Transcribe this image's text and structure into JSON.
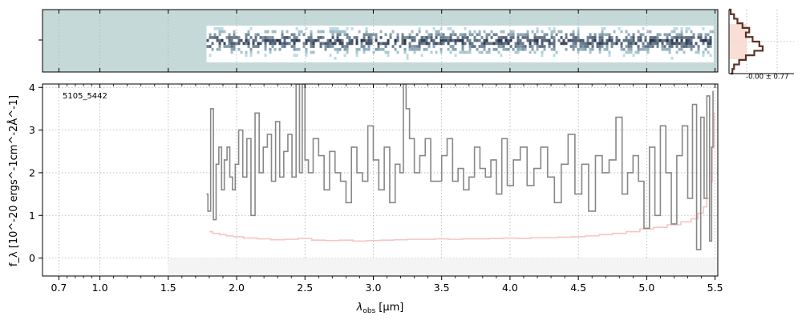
{
  "chart_data": {
    "type": "line",
    "object_label": "5105_5442",
    "xlabel_main": "λ",
    "xlabel_sub": "obs",
    "xlabel_unit": "[μm]",
    "ylabel": "f_λ [10^-20 ergs^-1cm^-2Å^-1]",
    "xlim": [
      0.58,
      5.52
    ],
    "ylim": [
      -0.42,
      4.08
    ],
    "x_ticks": [
      0.7,
      1.0,
      1.5,
      2.0,
      2.5,
      3.0,
      3.5,
      4.0,
      4.5,
      5.0,
      5.5
    ],
    "x_tick_labels": [
      "0.7",
      "1.0",
      "1.5",
      "2.0",
      "2.5",
      "3.0",
      "3.5",
      "4.0",
      "4.5",
      "5.0",
      "5.5"
    ],
    "y_ticks": [
      0,
      1,
      2,
      3,
      4
    ],
    "y_tick_labels": [
      "0",
      "1",
      "2",
      "3",
      "4"
    ],
    "grid": true,
    "colors": {
      "flux": "#888888",
      "error": "#f8c4c4",
      "panel_bg": "#c5d9d9",
      "hist_fill": "#f8d6cc",
      "hist_line": "#5a3226",
      "grid": "#b0b0b0"
    },
    "series": [
      {
        "key": "flux",
        "x": [
          1.78,
          1.8,
          1.82,
          1.84,
          1.86,
          1.88,
          1.9,
          1.92,
          1.94,
          1.96,
          1.98,
          2.0,
          2.03,
          2.06,
          2.09,
          2.12,
          2.15,
          2.18,
          2.21,
          2.24,
          2.27,
          2.3,
          2.33,
          2.36,
          2.39,
          2.42,
          2.45,
          2.47,
          2.49,
          2.51,
          2.54,
          2.58,
          2.62,
          2.66,
          2.7,
          2.74,
          2.78,
          2.82,
          2.86,
          2.9,
          2.94,
          2.98,
          3.02,
          3.06,
          3.1,
          3.14,
          3.18,
          3.21,
          3.23,
          3.25,
          3.28,
          3.32,
          3.36,
          3.4,
          3.44,
          3.48,
          3.52,
          3.56,
          3.6,
          3.64,
          3.68,
          3.72,
          3.76,
          3.8,
          3.84,
          3.88,
          3.92,
          3.96,
          4.0,
          4.05,
          4.1,
          4.15,
          4.2,
          4.25,
          4.3,
          4.35,
          4.4,
          4.45,
          4.5,
          4.55,
          4.6,
          4.65,
          4.7,
          4.75,
          4.8,
          4.84,
          4.88,
          4.92,
          4.96,
          5.0,
          5.04,
          5.08,
          5.12,
          5.16,
          5.2,
          5.24,
          5.28,
          5.32,
          5.35,
          5.38,
          5.41,
          5.43,
          5.45,
          5.47,
          5.48,
          5.49
        ],
        "y": [
          1.5,
          1.1,
          3.5,
          0.9,
          2.2,
          2.6,
          1.6,
          2.3,
          2.6,
          1.9,
          1.6,
          2.2,
          3.0,
          1.9,
          2.8,
          1.0,
          3.4,
          2.0,
          2.6,
          2.9,
          1.8,
          3.2,
          1.9,
          2.5,
          2.9,
          1.9,
          4.08,
          2.0,
          4.08,
          2.3,
          2.0,
          2.8,
          2.4,
          1.6,
          2.5,
          2.0,
          1.8,
          1.3,
          2.6,
          2.0,
          1.8,
          3.1,
          2.3,
          1.6,
          2.6,
          1.3,
          2.2,
          2.0,
          4.08,
          3.5,
          2.8,
          2.0,
          2.4,
          2.8,
          1.8,
          1.8,
          2.4,
          2.8,
          1.8,
          2.1,
          1.6,
          1.9,
          2.6,
          2.1,
          1.9,
          2.3,
          1.5,
          2.8,
          1.7,
          2.3,
          2.6,
          1.7,
          2.1,
          2.6,
          1.9,
          1.3,
          2.2,
          2.9,
          1.5,
          2.2,
          1.1,
          2.4,
          2.0,
          2.3,
          3.3,
          1.5,
          2.0,
          2.4,
          1.8,
          0.7,
          2.6,
          1.0,
          3.1,
          2.0,
          0.8,
          2.4,
          3.1,
          1.4,
          3.6,
          0.2,
          3.3,
          1.4,
          3.8,
          0.4,
          2.6,
          3.9
        ]
      },
      {
        "key": "error",
        "x": [
          1.8,
          1.85,
          1.9,
          1.95,
          2.0,
          2.1,
          2.2,
          2.3,
          2.4,
          2.5,
          2.6,
          2.7,
          2.8,
          2.9,
          3.0,
          3.1,
          3.2,
          3.3,
          3.4,
          3.5,
          3.6,
          3.7,
          3.8,
          3.9,
          4.0,
          4.1,
          4.2,
          4.3,
          4.4,
          4.5,
          4.6,
          4.7,
          4.8,
          4.9,
          5.0,
          5.1,
          5.2,
          5.3,
          5.35,
          5.4,
          5.43,
          5.45,
          5.47,
          5.49,
          5.5
        ],
        "y": [
          0.62,
          0.58,
          0.55,
          0.52,
          0.5,
          0.47,
          0.45,
          0.43,
          0.44,
          0.46,
          0.42,
          0.41,
          0.42,
          0.4,
          0.41,
          0.42,
          0.43,
          0.44,
          0.44,
          0.45,
          0.44,
          0.45,
          0.45,
          0.46,
          0.47,
          0.46,
          0.48,
          0.48,
          0.49,
          0.5,
          0.52,
          0.55,
          0.58,
          0.62,
          0.68,
          0.72,
          0.78,
          0.85,
          0.92,
          1.05,
          1.2,
          1.4,
          1.8,
          2.6,
          3.4
        ]
      }
    ],
    "sidebar_hist": {
      "label": "-0.00 ± 0.77",
      "bins": [
        -1.4,
        -1.2,
        -1.0,
        -0.8,
        -0.6,
        -0.4,
        -0.2,
        0.0,
        0.2,
        0.4,
        0.6,
        0.8,
        1.0,
        1.2,
        1.4
      ],
      "counts": [
        1,
        3,
        5,
        8,
        12,
        10,
        14,
        18,
        20,
        15,
        10,
        6,
        3,
        2,
        1
      ]
    }
  }
}
